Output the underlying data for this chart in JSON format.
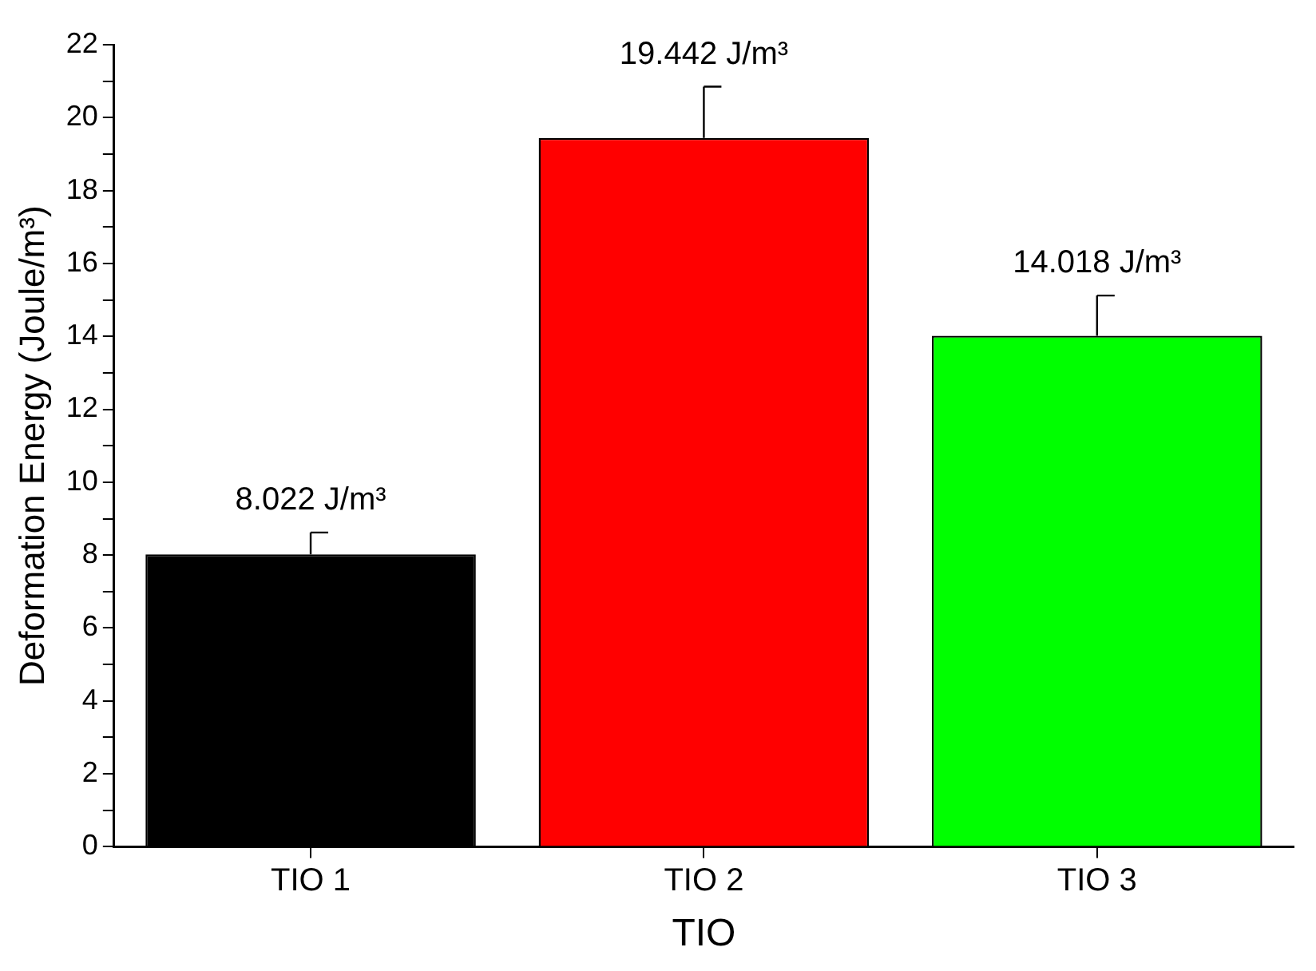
{
  "chart_data": {
    "type": "bar",
    "xlabel": "TIO",
    "ylabel": "Deformation Energy (Joule/m³)",
    "categories": [
      "TIO 1",
      "TIO 2",
      "TIO 3"
    ],
    "values": [
      8.022,
      19.442,
      14.018
    ],
    "colors": [
      "#000000",
      "#ff0000",
      "#00ff00"
    ],
    "errors": [
      [
        8.022,
        8.62
      ],
      [
        19.442,
        20.85
      ],
      [
        14.018,
        15.12
      ]
    ],
    "value_labels": [
      "8.022 J/m³",
      "19.442 J/m³",
      "14.018 J/m³"
    ],
    "ylim": [
      0,
      22
    ],
    "yticks": [
      0,
      {
        "value": 1,
        "label": null
      },
      2,
      {
        "value": 3,
        "label": null
      },
      4,
      {
        "value": 5,
        "label": null
      },
      6,
      {
        "value": 7,
        "label": null
      },
      8,
      {
        "value": 9,
        "label": null
      },
      10,
      {
        "value": 11,
        "label": null
      },
      12,
      {
        "value": 13,
        "label": null
      },
      14,
      {
        "value": 15,
        "label": null
      },
      16,
      {
        "value": 17,
        "label": null
      },
      18,
      {
        "value": 19,
        "label": null
      },
      20,
      {
        "value": 21,
        "label": null
      },
      22
    ],
    "grid": false,
    "legend": false
  }
}
